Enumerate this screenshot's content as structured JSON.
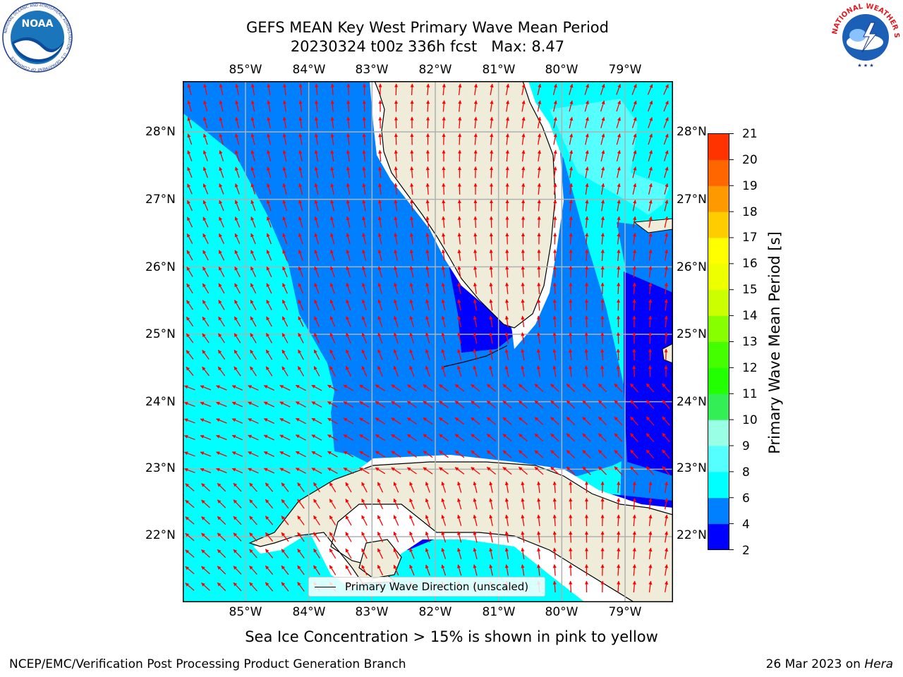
{
  "title_line1": "GEFS MEAN Key West Primary Wave Mean Period",
  "title_line2": "20230324 t00z 336h fcst   Max: 8.47",
  "map": {
    "lon_labels": [
      "85°W",
      "84°W",
      "83°W",
      "82°W",
      "81°W",
      "80°W",
      "79°W"
    ],
    "lon_values": [
      -85,
      -84,
      -83,
      -82,
      -81,
      -80,
      -79
    ],
    "lat_labels": [
      "28°N",
      "27°N",
      "26°N",
      "25°N",
      "24°N",
      "23°N",
      "22°N"
    ],
    "lat_values": [
      28,
      27,
      26,
      25,
      24,
      23,
      22
    ],
    "legend_text": "Primary Wave Direction (unscaled)",
    "colors": {
      "land": "#efedda",
      "arrows": "#ff0000",
      "grid": "#b0b0b0",
      "level_4_6": "#0080ff",
      "level_6_8": "#00ffff",
      "level_2_4": "#0000ff",
      "level_8_10": "#55ffff"
    }
  },
  "colorbar": {
    "label": "Primary Wave Mean Period [s]",
    "tick_labels": [
      "21",
      "20",
      "19",
      "18",
      "17",
      "16",
      "15",
      "14",
      "13",
      "12",
      "11",
      "10",
      "9",
      "8",
      "6",
      "4",
      "2"
    ],
    "colors": [
      "#0000ff",
      "#0080ff",
      "#00ffff",
      "#55ffff",
      "#99ffe5",
      "#33ee55",
      "#22ff00",
      "#44ff00",
      "#88ff00",
      "#ccff00",
      "#eeff00",
      "#ffff00",
      "#ffcc00",
      "#ff9900",
      "#ff6600",
      "#ff3300",
      "#ff0000"
    ]
  },
  "caption": "Sea Ice Concentration > 15% is shown in pink to yellow",
  "footer_left": "NCEP/EMC/Verification Post Processing Product Generation Branch",
  "footer_right_date": "26 Mar 2023 on ",
  "footer_right_machine": "Hera",
  "logos": {
    "left": "NOAA",
    "left_ring_text": "NATIONAL OCEANIC AND ATMOSPHERIC ADMINISTRATION · U.S. DEPARTMENT OF COMMERCE",
    "right_ring_text": "NATIONAL WEATHER SERVICE"
  }
}
